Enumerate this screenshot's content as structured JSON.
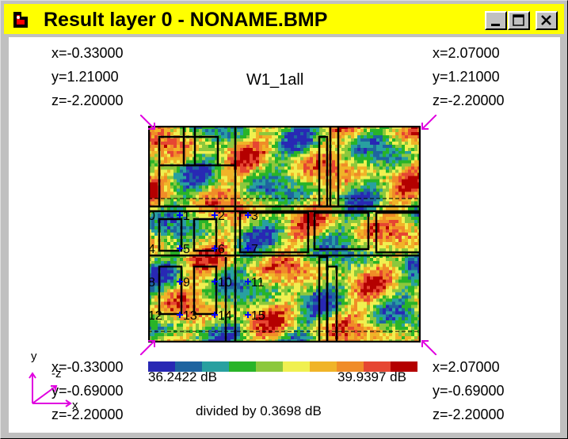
{
  "window": {
    "title": "Result layer 0 - NONAME.BMP",
    "icon": "app-icon"
  },
  "controls": {
    "minimize": "minimize-icon",
    "maximize": "maximize-icon",
    "close": "close-icon"
  },
  "plot_title": "W1_1all",
  "corners": {
    "top_left": {
      "x": "x=-0.33000",
      "y": "y=1.21000",
      "z": "z=-2.20000"
    },
    "top_right": {
      "x": "x=2.07000",
      "y": "y=1.21000",
      "z": "z=-2.20000"
    },
    "bottom_left": {
      "x": "x=-0.33000",
      "y": "y=-0.69000",
      "z": "z=-2.20000"
    },
    "bottom_right": {
      "x": "x=2.07000",
      "y": "y=-0.69000",
      "z": "z=-2.20000"
    }
  },
  "legend": {
    "min": "36.2422 dB",
    "max": "39.9397 dB",
    "divided": "divided by 0.3698 dB",
    "colors": [
      "#2828b4",
      "#1e64a0",
      "#28a0a0",
      "#28b428",
      "#8cc83c",
      "#f0f050",
      "#f0b428",
      "#f08c28",
      "#e64632",
      "#b40000"
    ]
  },
  "axes": {
    "y": "y",
    "z": "-z",
    "x": "x"
  },
  "points": [
    "0",
    "1",
    "2",
    "3",
    "4",
    "5",
    "6",
    "7",
    "8",
    "9",
    "10",
    "11",
    "12",
    "13",
    "14",
    "15"
  ],
  "colors": {
    "titlebar": "#ffff00",
    "marker": "#e000e0",
    "point": "#0000ff"
  }
}
